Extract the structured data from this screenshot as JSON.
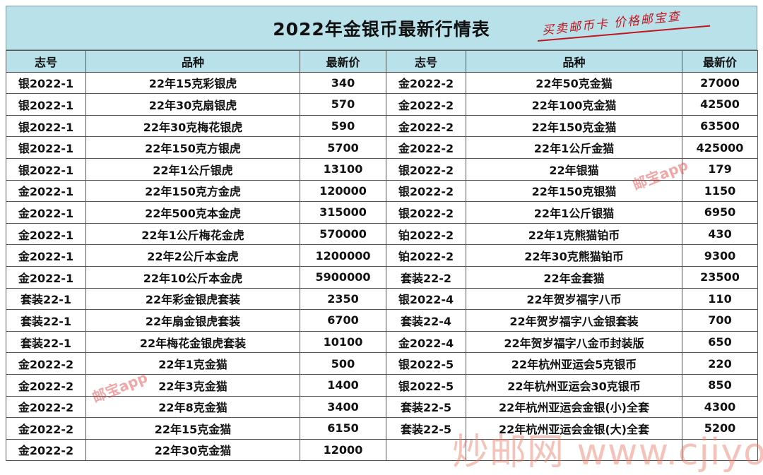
{
  "title": "2022年金银币最新行情表",
  "slogan": "买卖邮币卡 价格邮宝查",
  "headers": {
    "id": "志号",
    "variety": "品种",
    "price": "最新价"
  },
  "left_rows": [
    {
      "id": "银2022-1",
      "variety": "22年15克彩银虎",
      "price": "340"
    },
    {
      "id": "银2022-1",
      "variety": "22年30克扇银虎",
      "price": "570"
    },
    {
      "id": "银2022-1",
      "variety": "22年30克梅花银虎",
      "price": "590"
    },
    {
      "id": "银2022-1",
      "variety": "22年150克方银虎",
      "price": "5700"
    },
    {
      "id": "银2022-1",
      "variety": "22年1公斤银虎",
      "price": "13100"
    },
    {
      "id": "金2022-1",
      "variety": "22年150克方金虎",
      "price": "120000"
    },
    {
      "id": "金2022-1",
      "variety": "22年500克本金虎",
      "price": "315000"
    },
    {
      "id": "金2022-1",
      "variety": "22年1公斤梅花金虎",
      "price": "570000"
    },
    {
      "id": "金2022-1",
      "variety": "22年2公斤本金虎",
      "price": "1200000"
    },
    {
      "id": "金2022-1",
      "variety": "22年10公斤本金虎",
      "price": "5900000"
    },
    {
      "id": "套装22-1",
      "variety": "22年彩金银虎套装",
      "price": "2350"
    },
    {
      "id": "套装22-1",
      "variety": "22年扇金银虎套装",
      "price": "6700"
    },
    {
      "id": "套装22-1",
      "variety": "22年梅花金银虎套装",
      "price": "10100"
    },
    {
      "id": "金2022-2",
      "variety": "22年1克金猫",
      "price": "500"
    },
    {
      "id": "金2022-2",
      "variety": "22年3克金猫",
      "price": "1400"
    },
    {
      "id": "金2022-2",
      "variety": "22年8克金猫",
      "price": "3400"
    },
    {
      "id": "金2022-2",
      "variety": "22年15克金猫",
      "price": "6150"
    },
    {
      "id": "金2022-2",
      "variety": "22年30克金猫",
      "price": "12000"
    }
  ],
  "right_rows": [
    {
      "id": "金2022-2",
      "variety": "22年50克金猫",
      "price": "27000"
    },
    {
      "id": "金2022-2",
      "variety": "22年100克金猫",
      "price": "42500"
    },
    {
      "id": "金2022-2",
      "variety": "22年150克金猫",
      "price": "63500"
    },
    {
      "id": "金2022-2",
      "variety": "22年1公斤金猫",
      "price": "425000"
    },
    {
      "id": "银2022-2",
      "variety": "22年银猫",
      "price": "179"
    },
    {
      "id": "银2022-2",
      "variety": "22年150克银猫",
      "price": "1150"
    },
    {
      "id": "银2022-2",
      "variety": "22年1公斤银猫",
      "price": "6950"
    },
    {
      "id": "铂2022-2",
      "variety": "22年1克熊猫铂币",
      "price": "430"
    },
    {
      "id": "铂2022-2",
      "variety": "22年30克熊猫铂币",
      "price": "9300"
    },
    {
      "id": "套装22-2",
      "variety": "22年金套猫",
      "price": "23500"
    },
    {
      "id": "银2022-4",
      "variety": "22年贺岁福字八币",
      "price": "110"
    },
    {
      "id": "套装22-4",
      "variety": "22年贺岁福字八金银套装",
      "price": "700"
    },
    {
      "id": "金2022-4",
      "variety": "22年贺岁福字八金币封装版",
      "price": "650"
    },
    {
      "id": "银2022-5",
      "variety": "22年杭州亚运会5克银币",
      "price": "220"
    },
    {
      "id": "银2022-5",
      "variety": "22年杭州亚运会30克银币",
      "price": "850"
    },
    {
      "id": "套装22-5",
      "variety": "22年杭州亚运会金银(小)全套",
      "price": "4300"
    },
    {
      "id": "套装22-5",
      "variety": "22年杭州亚运会金银(大)全套",
      "price": "5200"
    },
    {
      "id": "",
      "variety": "",
      "price": ""
    }
  ],
  "watermarks": {
    "app": "邮宝app",
    "site": "炒邮网 www.cjiyou.net"
  }
}
